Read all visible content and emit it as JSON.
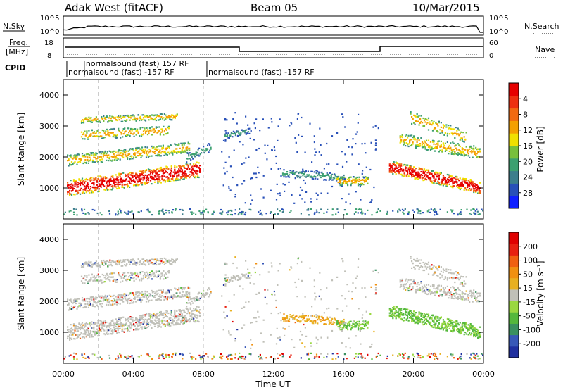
{
  "header": {
    "station": "Adak West (fitACF)",
    "beam": "Beam 05",
    "date": "10/Mar/2015"
  },
  "top": {
    "nsky_label": "N.Sky",
    "nsearch_label": "N.Search",
    "freq_label_1": "Freq.",
    "freq_label_2": "[MHz]",
    "nave_label": "Nave",
    "cpid_label": "CPID",
    "nsky_ticks": [
      "10^5",
      "10^0"
    ],
    "nsearch_ticks": [
      "10^5",
      "10^0"
    ],
    "freq_ticks": [
      "18",
      "8"
    ],
    "nave_ticks": [
      "60",
      "0"
    ],
    "cpid_segments": [
      {
        "start": 0.2,
        "end": 1.2,
        "text": "normalsound (fast) -157 RF",
        "row": 2
      },
      {
        "start": 1.2,
        "end": 8.2,
        "text": "normalsound (fast) 157 RF",
        "row": 1
      },
      {
        "start": 8.2,
        "end": 24.0,
        "text": "normalsound (fast) -157 RF",
        "row": 2
      }
    ]
  },
  "chart_data": [
    {
      "type": "heatmap",
      "title": "",
      "ylabel": "Slant Range [km]",
      "ylim": [
        0,
        4500
      ],
      "yticks": [
        "1000",
        "2000",
        "3000",
        "4000"
      ],
      "xlim": [
        0,
        24
      ],
      "colorbar": {
        "label": "Power [dB]",
        "ticks": [
          "4",
          "8",
          "12",
          "16",
          "20",
          "24",
          "28"
        ],
        "colors": [
          "#1020ff",
          "#2850b8",
          "#3c7e8c",
          "#3ca070",
          "#78c03c",
          "#f0e000",
          "#f4a000",
          "#f26a10",
          "#ee3010",
          "#e60000"
        ]
      }
    },
    {
      "type": "heatmap",
      "title": "",
      "ylabel": "Slant Range [km]",
      "ylim": [
        0,
        4500
      ],
      "yticks": [
        "1000",
        "2000",
        "3000",
        "4000"
      ],
      "xlim": [
        0,
        24
      ],
      "colorbar": {
        "label": "Velocity [m s⁻¹]",
        "ticks": [
          "200",
          "100",
          "50",
          "15",
          "-15",
          "-50",
          "-100",
          "-200"
        ],
        "colors": [
          "#2030a0",
          "#3858b8",
          "#3a9060",
          "#54b83c",
          "#9ad840",
          "#c0c0b8",
          "#e8b020",
          "#f09010",
          "#f06010",
          "#e82010",
          "#e00000"
        ]
      }
    }
  ],
  "xaxis": {
    "label": "Time UT",
    "ticks": [
      "00:00",
      "04:00",
      "08:00",
      "12:00",
      "16:00",
      "20:00",
      "00:00"
    ]
  }
}
